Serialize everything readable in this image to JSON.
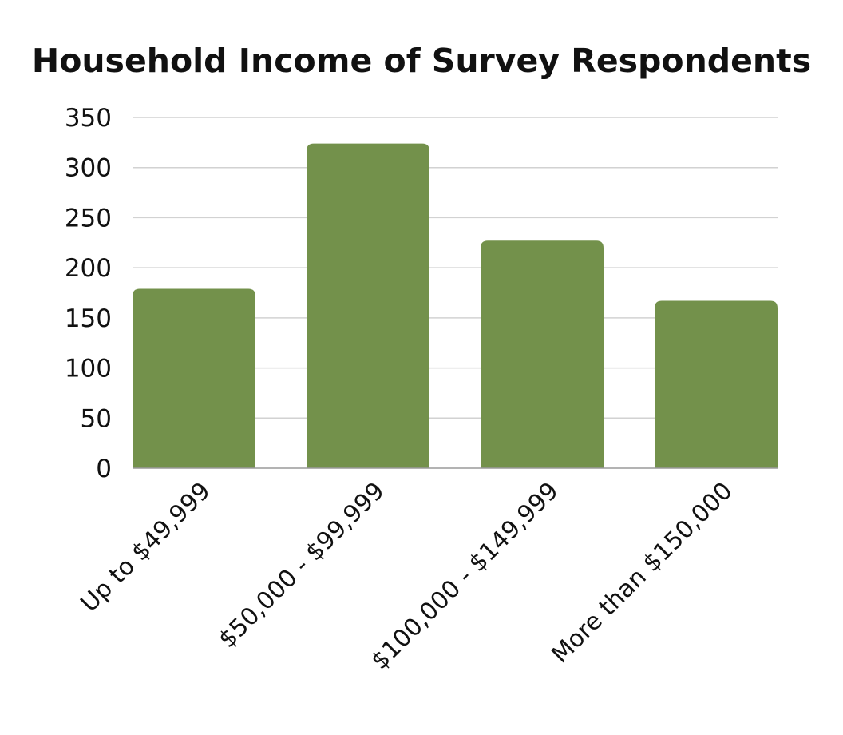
{
  "chart_data": {
    "type": "bar",
    "title": "Household Income of Survey Respondents",
    "xlabel": "",
    "ylabel": "",
    "categories": [
      "Up to $49,999",
      "$50,000 - $99,999",
      "$100,000 - $149,999",
      "More than $150,000"
    ],
    "values": [
      179,
      324,
      227,
      167
    ],
    "ylim": [
      0,
      350
    ],
    "yticks": [
      "0",
      "50",
      "100",
      "150",
      "200",
      "250",
      "300",
      "350"
    ],
    "grid": true,
    "legend": "none",
    "bar_color": "#73914b",
    "grid_color": "#d2d2d2",
    "axis_color": "#9a9a9a"
  }
}
